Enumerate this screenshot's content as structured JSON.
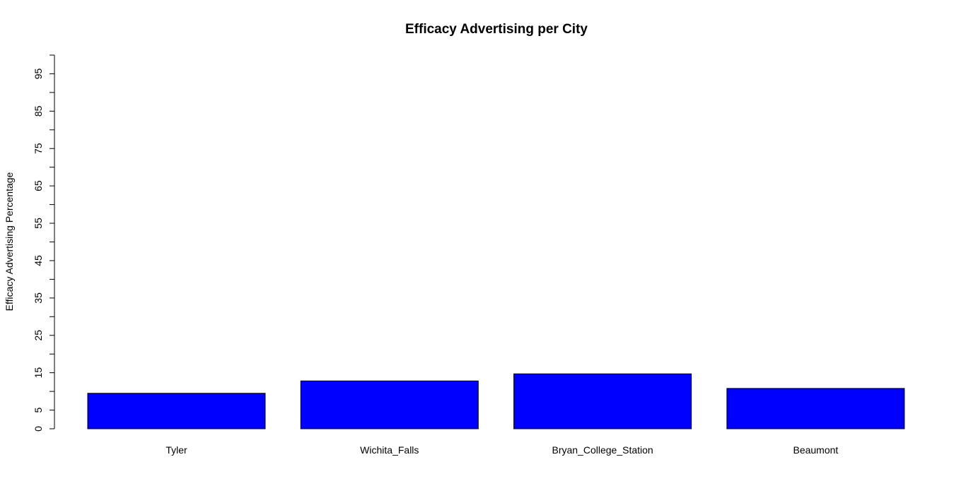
{
  "chart_data": {
    "type": "bar",
    "title": "Efficacy Advertising per City",
    "xlabel": "",
    "ylabel": "Efficacy Advertising Percentage",
    "categories": [
      "Tyler",
      "Wichita_Falls",
      "Bryan_College_Station",
      "Beaumont"
    ],
    "values": [
      9.5,
      12.8,
      14.7,
      10.8
    ],
    "ylim": [
      0,
      100
    ],
    "yticks_major": [
      0,
      5,
      15,
      25,
      35,
      45,
      55,
      65,
      75,
      85,
      95
    ],
    "yticks_labels": [
      "0",
      "5",
      "15",
      "25",
      "35",
      "45",
      "55",
      "65",
      "75",
      "85",
      "95"
    ],
    "yticks_minor": [
      10,
      20,
      30,
      40,
      50,
      60,
      70,
      80,
      90,
      100
    ],
    "bar_color": "#0000ff",
    "bar_border_color": "#000000",
    "grid": false,
    "legend": "none"
  }
}
